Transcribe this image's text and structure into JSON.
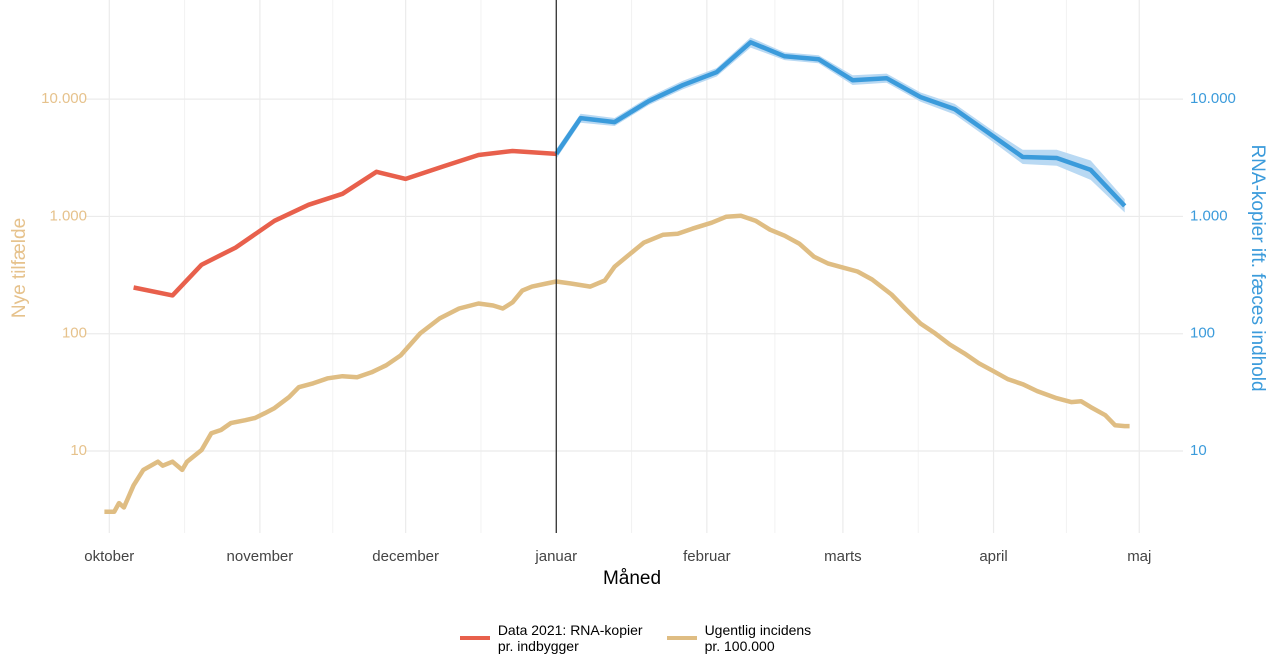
{
  "chart_data": {
    "type": "line",
    "x_label": "Måned",
    "y_label": "Nye tilfælde",
    "y2_label": "RNA-kopier ift. fæces indhold",
    "xlim": [
      -5,
      221
    ],
    "xticks": [
      {
        "value": 0,
        "label": "oktober"
      },
      {
        "value": 31,
        "label": "november"
      },
      {
        "value": 61,
        "label": "december"
      },
      {
        "value": 92,
        "label": "januar"
      },
      {
        "value": 123,
        "label": "februar"
      },
      {
        "value": 151,
        "label": "marts"
      },
      {
        "value": 182,
        "label": "april"
      },
      {
        "value": 212,
        "label": "maj"
      }
    ],
    "ylim": [
      2,
      70000
    ],
    "y2lim": [
      2,
      70000
    ],
    "log_scale": true,
    "grid": true,
    "yticks": [
      10,
      100,
      {
        "value": 1000,
        "label": "1.000"
      },
      {
        "value": 10000,
        "label": "10.000"
      }
    ],
    "y2ticks": [
      10,
      100,
      {
        "value": 1000,
        "label": "1.000"
      },
      {
        "value": 10000,
        "label": "10.000"
      }
    ],
    "y_color": "#e6c28c",
    "y2_color": "#3b9bdb",
    "vline": 92,
    "legend": "bottom",
    "series": [
      {
        "name": "Data 2021: RNA-kopier\npr. indbygger",
        "color": "#e8604c",
        "x": [
          5,
          13,
          19,
          26,
          34,
          41,
          48,
          55,
          61,
          69,
          76,
          83,
          92
        ],
        "values": [
          248,
          212,
          388,
          542,
          918,
          1256,
          1560,
          2400,
          2090,
          2690,
          3340,
          3610,
          3410
        ]
      },
      {
        "name": "Ugentlig incidens\npr. 100.000",
        "color": "#dfbd83",
        "x": [
          -1,
          1,
          2,
          3,
          5,
          7,
          10,
          11,
          13,
          15,
          16,
          19,
          21,
          23,
          25,
          28,
          30,
          32,
          34,
          37,
          39,
          42,
          45,
          48,
          51,
          54,
          57,
          60,
          64,
          68,
          72,
          76,
          79,
          81,
          83,
          85,
          87,
          90,
          92,
          95,
          99,
          102,
          104,
          107,
          110,
          114,
          117,
          120,
          124,
          127,
          130,
          133,
          136,
          139,
          142,
          145,
          148,
          151,
          154,
          157,
          161,
          164,
          167,
          170,
          173,
          176,
          179,
          182,
          185,
          188,
          191,
          195,
          198,
          200,
          202,
          205,
          207,
          209,
          210
        ],
        "values": [
          3.03,
          3.03,
          3.6,
          3.3,
          5.1,
          6.9,
          8.1,
          7.5,
          8.1,
          6.9,
          8.1,
          10.2,
          14.2,
          15.1,
          17.3,
          18.3,
          19.1,
          21.0,
          23.2,
          28.8,
          35.0,
          37.8,
          41.7,
          43.4,
          42.6,
          46.9,
          53.8,
          65.5,
          100.7,
          135,
          164,
          181,
          174,
          164,
          185,
          233,
          252,
          268,
          279,
          268,
          252,
          284,
          373,
          472,
          597,
          698,
          713,
          786,
          884,
          994,
          1014,
          919,
          771,
          685,
          586,
          454,
          396,
          366,
          339,
          290,
          216,
          161,
          122,
          100.7,
          81,
          68,
          56,
          47.9,
          40.9,
          37.1,
          32.4,
          28.2,
          26.1,
          26.6,
          23.7,
          20.2,
          16.6,
          16.3,
          16.3
        ]
      },
      {
        "color": "#3b9bdb",
        "band_color": "#b9d9f3",
        "axis": "y2",
        "x": [
          92,
          97,
          104,
          111,
          118,
          125,
          132,
          139,
          146,
          153,
          160,
          167,
          174,
          181,
          188,
          195,
          202,
          209
        ],
        "values": [
          3410,
          6890,
          6370,
          9610,
          13150,
          16950,
          30500,
          23200,
          21880,
          14500,
          15080,
          10400,
          8220,
          5140,
          3210,
          3150,
          2490,
          1230
        ],
        "lower": [
          3100,
          6300,
          5900,
          8900,
          12100,
          15600,
          27500,
          21500,
          20200,
          13200,
          13800,
          9500,
          7400,
          4600,
          2800,
          2700,
          2050,
          1080
        ],
        "upper": [
          3750,
          7500,
          6900,
          10400,
          14300,
          18400,
          33500,
          25000,
          23700,
          16000,
          16500,
          11400,
          9100,
          5700,
          3700,
          3700,
          3000,
          1400
        ]
      }
    ]
  }
}
